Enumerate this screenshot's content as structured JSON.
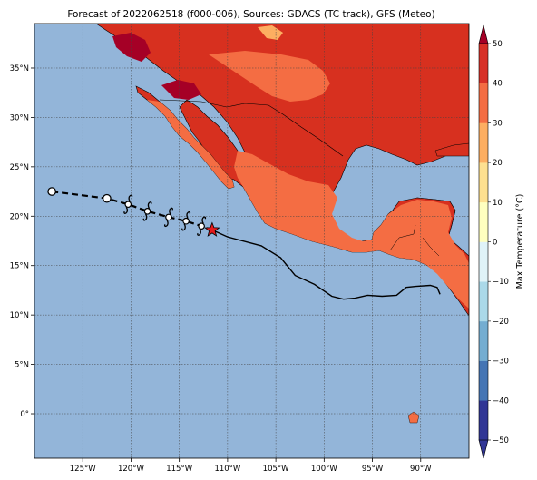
{
  "title": "Forecast of 2022062518 (f000-006), Sources: GDACS (TC track), GFS (Meteo)",
  "map": {
    "lon_range": [
      -130,
      -85
    ],
    "lat_range": [
      -4.5,
      39.5
    ],
    "lon_ticks": [
      -125,
      -120,
      -115,
      -110,
      -105,
      -100,
      -95,
      -90
    ],
    "lat_ticks": [
      0,
      5,
      10,
      15,
      20,
      25,
      30,
      35
    ],
    "lon_tick_labels": [
      "125°W",
      "120°W",
      "115°W",
      "110°W",
      "105°W",
      "100°W",
      "95°W",
      "90°W"
    ],
    "lat_tick_labels": [
      "0°",
      "5°N",
      "10°N",
      "15°N",
      "20°N",
      "25°N",
      "30°N",
      "35°N"
    ],
    "grid": true,
    "ocean_color": "#93b5d9"
  },
  "colorbar": {
    "label": "Max Temperature (°C)",
    "ticks": [
      50,
      40,
      30,
      20,
      10,
      0,
      -10,
      -20,
      -30,
      -40,
      -50
    ],
    "tick_labels": [
      "50",
      "40",
      "30",
      "20",
      "10",
      "0",
      "−10",
      "−20",
      "−30",
      "−40",
      "−50"
    ],
    "colors": [
      "#313695",
      "#4575b4",
      "#74add1",
      "#abd9e9",
      "#e0f3f8",
      "#ffffbf",
      "#fee090",
      "#fdae61",
      "#f46d43",
      "#d73027",
      "#a50026"
    ]
  },
  "track": {
    "forecast_points": [
      {
        "lon": -128.2,
        "lat": 22.5,
        "symbol": "circle"
      },
      {
        "lon": -122.5,
        "lat": 21.8,
        "symbol": "circle"
      },
      {
        "lon": -120.3,
        "lat": 21.2,
        "symbol": "storm"
      },
      {
        "lon": -118.3,
        "lat": 20.5,
        "symbol": "storm"
      },
      {
        "lon": -116.1,
        "lat": 19.9,
        "symbol": "storm"
      },
      {
        "lon": -114.3,
        "lat": 19.5,
        "symbol": "storm"
      },
      {
        "lon": -112.7,
        "lat": 19.0,
        "symbol": "storm"
      }
    ],
    "current_position": {
      "lon": -111.6,
      "lat": 18.6
    },
    "past_track": [
      [
        -111.6,
        18.6
      ],
      [
        -110.0,
        17.9
      ],
      [
        -106.5,
        17.0
      ],
      [
        -104.5,
        15.8
      ],
      [
        -103.0,
        14.0
      ],
      [
        -101.0,
        13.1
      ],
      [
        -99.2,
        11.9
      ],
      [
        -98.0,
        11.6
      ],
      [
        -96.8,
        11.7
      ],
      [
        -95.5,
        12.0
      ],
      [
        -94.0,
        11.9
      ],
      [
        -92.5,
        12.0
      ],
      [
        -91.5,
        12.8
      ],
      [
        -90.5,
        12.9
      ],
      [
        -89.0,
        13.0
      ],
      [
        -88.3,
        12.8
      ],
      [
        -88.0,
        12.1
      ]
    ]
  }
}
